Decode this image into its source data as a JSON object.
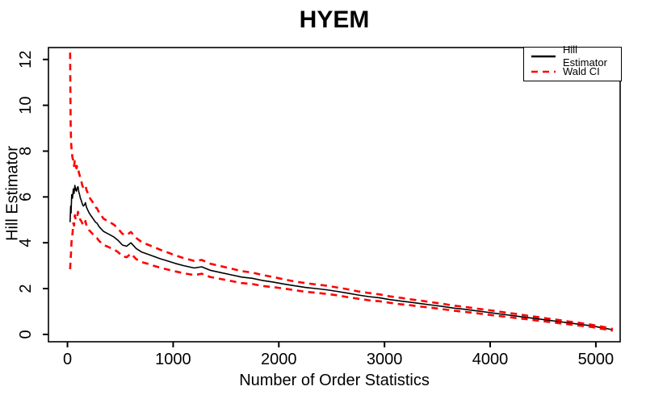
{
  "title": "HYEM",
  "legend": {
    "items": [
      {
        "label": "Hill Estimator",
        "color": "#000000",
        "style": "solid"
      },
      {
        "label": "Wald CI",
        "color": "#ff0000",
        "style": "dashed"
      }
    ]
  },
  "chart_data": {
    "type": "line",
    "title": "HYEM",
    "xlabel": "Number of Order Statistics",
    "ylabel": "Hill Estimator",
    "xlim": [
      -180,
      5230
    ],
    "ylim": [
      -0.32,
      12.52
    ],
    "x_ticks": [
      0,
      1000,
      2000,
      3000,
      4000,
      5000
    ],
    "y_ticks": [
      0,
      2,
      4,
      6,
      8,
      10,
      12
    ],
    "grid": false,
    "legend_position": "top-right",
    "colors": {
      "hill": "#000000",
      "ci": "#ff0000"
    },
    "x": [
      25,
      30,
      34,
      40,
      48,
      55,
      62,
      70,
      78,
      85,
      92,
      100,
      108,
      115,
      122,
      130,
      140,
      150,
      160,
      170,
      180,
      190,
      205,
      220,
      235,
      250,
      265,
      280,
      300,
      320,
      340,
      360,
      380,
      400,
      440,
      480,
      520,
      560,
      600,
      650,
      700,
      760,
      820,
      880,
      950,
      1020,
      1100,
      1200,
      1270,
      1350,
      1450,
      1550,
      1650,
      1750,
      1850,
      1950,
      2050,
      2150,
      2250,
      2350,
      2450,
      2550,
      2650,
      2750,
      2850,
      2950,
      3050,
      3150,
      3250,
      3350,
      3450,
      3550,
      3650,
      3750,
      3850,
      3950,
      4050,
      4150,
      4250,
      4350,
      4450,
      4550,
      4650,
      4750,
      4850,
      4950,
      5050,
      5120,
      5160
    ],
    "series": [
      {
        "name": "Hill Estimator",
        "values": [
          4.9,
          5.6,
          5.3,
          6.1,
          5.95,
          6.35,
          6.15,
          6.5,
          6.3,
          6.25,
          6.4,
          6.45,
          6.2,
          6.1,
          5.95,
          5.85,
          5.7,
          5.6,
          5.65,
          5.75,
          5.55,
          5.45,
          5.3,
          5.2,
          5.1,
          5.0,
          4.9,
          4.85,
          4.7,
          4.6,
          4.5,
          4.45,
          4.4,
          4.35,
          4.25,
          4.1,
          3.9,
          3.85,
          4.0,
          3.75,
          3.6,
          3.5,
          3.4,
          3.3,
          3.2,
          3.1,
          3.0,
          2.9,
          2.95,
          2.8,
          2.7,
          2.6,
          2.5,
          2.45,
          2.35,
          2.28,
          2.2,
          2.12,
          2.05,
          2.0,
          1.95,
          1.88,
          1.8,
          1.72,
          1.65,
          1.6,
          1.52,
          1.46,
          1.4,
          1.34,
          1.28,
          1.22,
          1.15,
          1.1,
          1.04,
          0.98,
          0.92,
          0.86,
          0.8,
          0.74,
          0.68,
          0.62,
          0.56,
          0.5,
          0.44,
          0.38,
          0.3,
          0.24,
          0.2
        ]
      },
      {
        "name": "Wald CI lower",
        "values": [
          2.85,
          3.3,
          3.6,
          4.2,
          4.4,
          4.85,
          4.75,
          5.2,
          5.0,
          5.05,
          5.15,
          5.35,
          5.15,
          5.1,
          5.0,
          4.95,
          4.85,
          4.75,
          4.8,
          4.95,
          4.75,
          4.68,
          4.55,
          4.48,
          4.4,
          4.32,
          4.25,
          4.2,
          4.08,
          3.99,
          3.92,
          3.87,
          3.83,
          3.79,
          3.71,
          3.59,
          3.41,
          3.37,
          3.53,
          3.29,
          3.16,
          3.08,
          2.99,
          2.91,
          2.83,
          2.75,
          2.67,
          2.59,
          2.65,
          2.51,
          2.42,
          2.33,
          2.24,
          2.2,
          2.11,
          2.06,
          2.0,
          1.93,
          1.86,
          1.82,
          1.77,
          1.71,
          1.63,
          1.56,
          1.49,
          1.45,
          1.38,
          1.32,
          1.27,
          1.21,
          1.16,
          1.1,
          1.04,
          0.99,
          0.94,
          0.88,
          0.82,
          0.77,
          0.71,
          0.66,
          0.6,
          0.55,
          0.49,
          0.44,
          0.38,
          0.33,
          0.25,
          0.2,
          0.16
        ]
      },
      {
        "name": "Wald CI upper",
        "values": [
          12.3,
          9.2,
          8.4,
          8.0,
          7.7,
          7.6,
          7.35,
          7.6,
          7.35,
          7.25,
          7.35,
          7.35,
          7.05,
          6.95,
          6.8,
          6.7,
          6.5,
          6.4,
          6.45,
          6.5,
          6.3,
          6.2,
          6.0,
          5.9,
          5.8,
          5.65,
          5.55,
          5.5,
          5.3,
          5.2,
          5.05,
          5.0,
          4.95,
          4.9,
          4.79,
          4.61,
          4.39,
          4.33,
          4.47,
          4.21,
          4.04,
          3.92,
          3.81,
          3.69,
          3.57,
          3.45,
          3.33,
          3.21,
          3.25,
          3.09,
          2.98,
          2.87,
          2.76,
          2.7,
          2.59,
          2.5,
          2.4,
          2.31,
          2.24,
          2.18,
          2.13,
          2.05,
          1.97,
          1.88,
          1.81,
          1.75,
          1.66,
          1.6,
          1.53,
          1.47,
          1.4,
          1.34,
          1.26,
          1.21,
          1.14,
          1.08,
          1.02,
          0.95,
          0.89,
          0.82,
          0.76,
          0.69,
          0.63,
          0.56,
          0.5,
          0.43,
          0.35,
          0.28,
          0.24
        ]
      }
    ]
  }
}
